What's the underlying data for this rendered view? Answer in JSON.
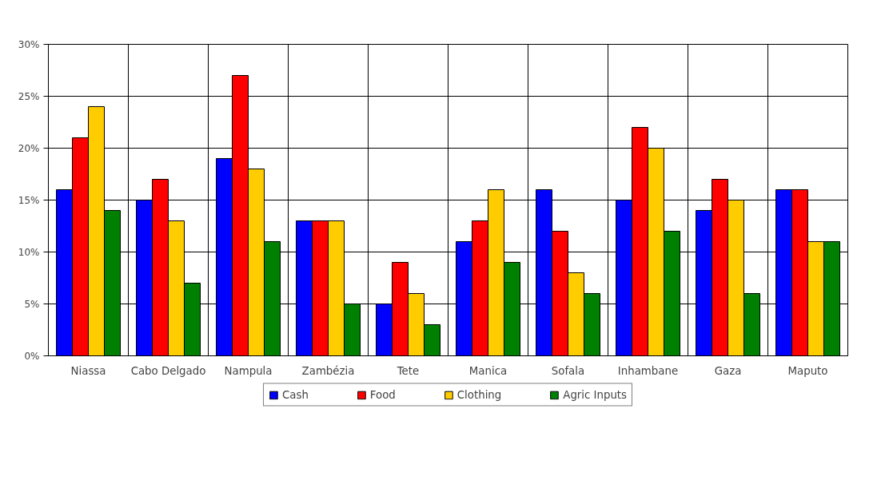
{
  "chart_data": {
    "type": "bar",
    "categories": [
      "Niassa",
      "Cabo Delgado",
      "Nampula",
      "Zambézia",
      "Tete",
      "Manica",
      "Sofala",
      "Inhambane",
      "Gaza",
      "Maputo"
    ],
    "series": [
      {
        "name": "Cash",
        "color": "#0000ff",
        "values": [
          16,
          15,
          19,
          13,
          5,
          11,
          16,
          15,
          14,
          16
        ]
      },
      {
        "name": "Food",
        "color": "#ff0000",
        "values": [
          21,
          17,
          27,
          13,
          9,
          13,
          12,
          22,
          17,
          16
        ]
      },
      {
        "name": "Clothing",
        "color": "#ffcc00",
        "values": [
          24,
          13,
          18,
          13,
          6,
          16,
          8,
          20,
          15,
          11
        ]
      },
      {
        "name": "Agric Inputs",
        "color": "#008000",
        "values": [
          14,
          7,
          11,
          5,
          3,
          9,
          6,
          12,
          6,
          11
        ]
      }
    ],
    "ylim": [
      0,
      30
    ],
    "yticks": [
      {
        "value": 0,
        "label": "0%"
      },
      {
        "value": 5,
        "label": "5%"
      },
      {
        "value": 10,
        "label": "10%"
      },
      {
        "value": 15,
        "label": "15%"
      },
      {
        "value": 20,
        "label": "20%"
      },
      {
        "value": 25,
        "label": "25%"
      },
      {
        "value": 30,
        "label": "30%"
      }
    ],
    "grid": true,
    "legend": "bottom"
  }
}
